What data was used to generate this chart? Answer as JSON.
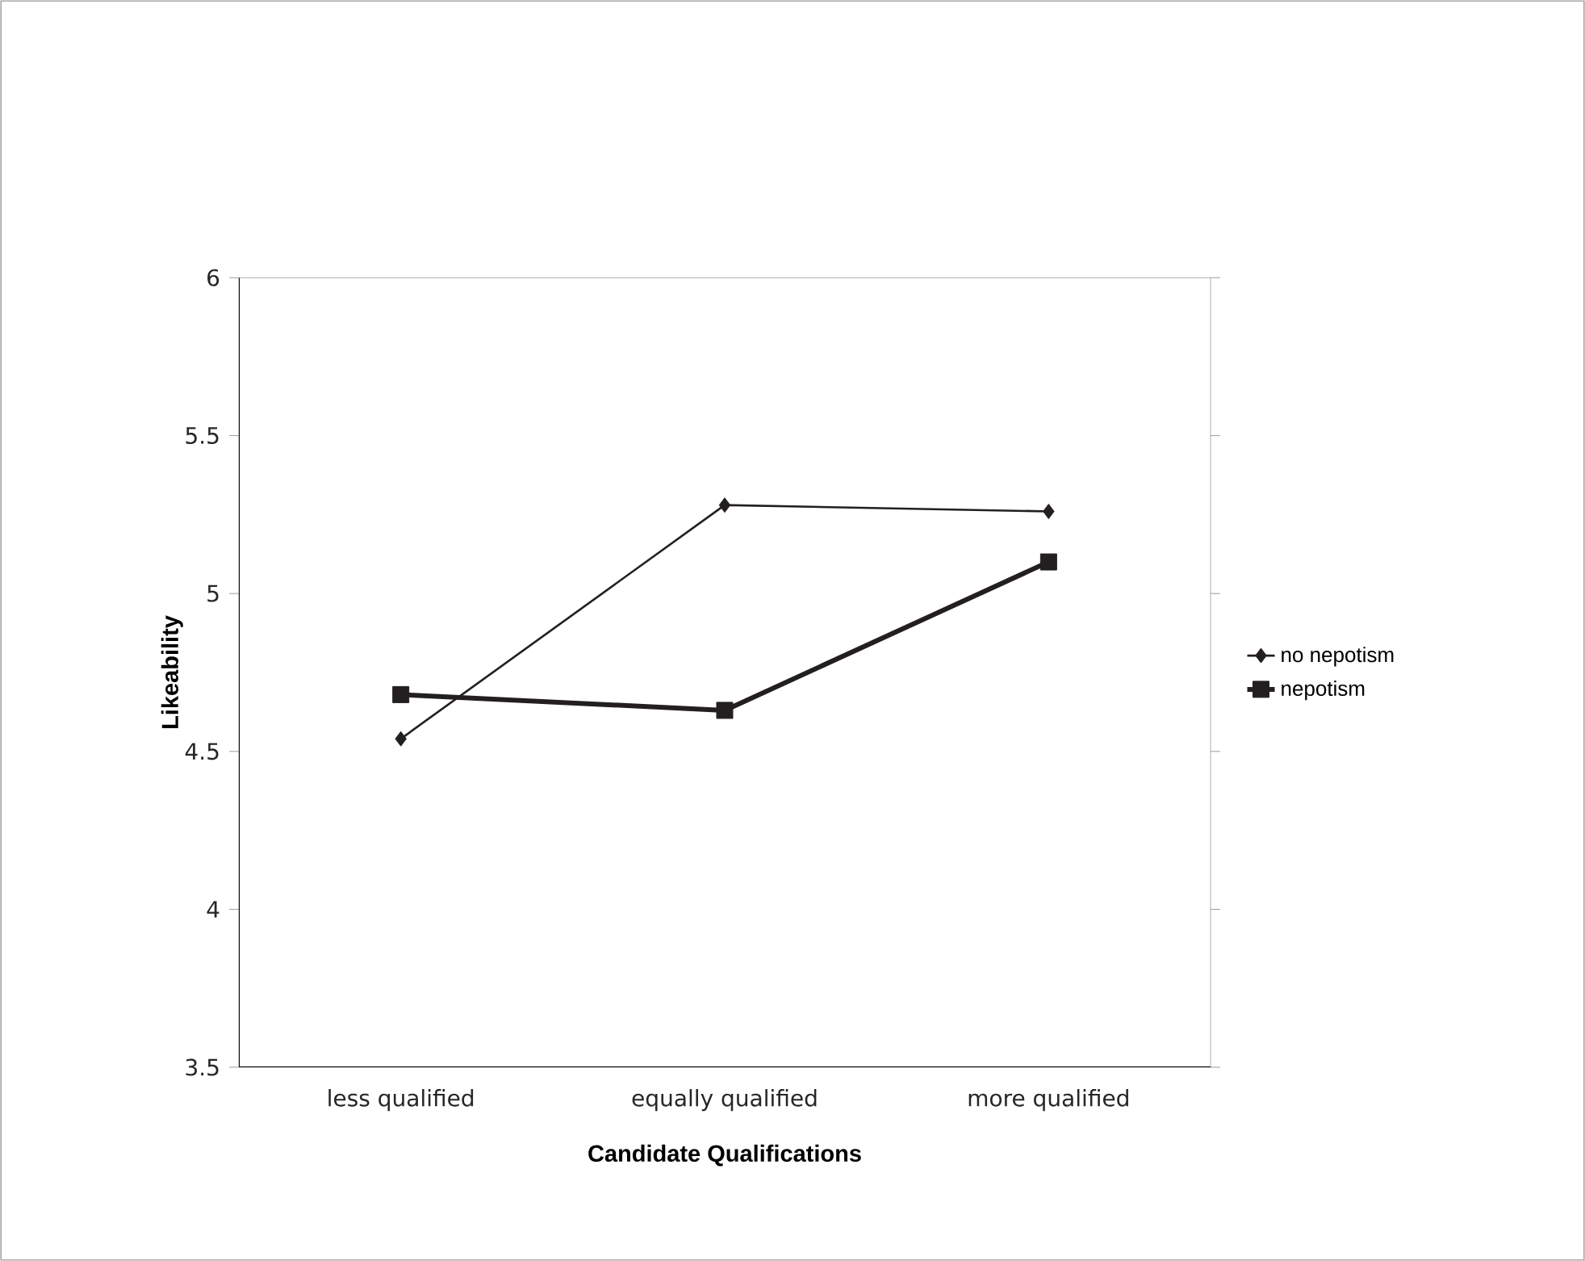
{
  "chart_data": {
    "type": "line",
    "xlabel": "Candidate Qualifications",
    "ylabel": "Likeability",
    "categories": [
      "less qualified",
      "equally qualified",
      "more qualified"
    ],
    "series": [
      {
        "name": "no nepotism",
        "color": "#231f20",
        "marker": "diamond",
        "values": [
          4.54,
          5.28,
          5.26
        ]
      },
      {
        "name": "nepotism",
        "color": "#231f20",
        "marker": "square",
        "values": [
          4.68,
          4.63,
          5.1
        ]
      }
    ],
    "ylim": [
      3.5,
      6
    ],
    "yticks": [
      3.5,
      4,
      4.5,
      5,
      5.5,
      6
    ],
    "grid": false,
    "legend": "right",
    "line_style": "solid"
  }
}
